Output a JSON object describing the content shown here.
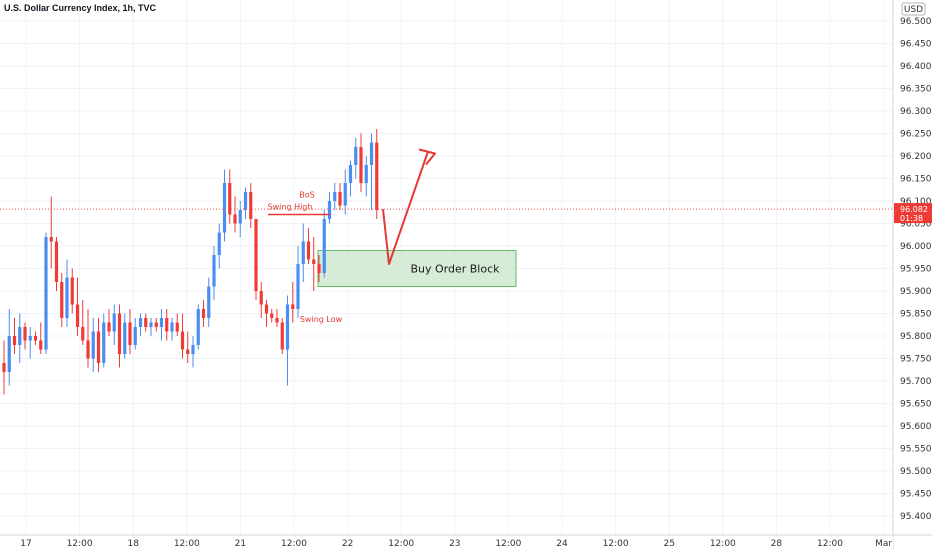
{
  "title": "U.S. Dollar Currency Index, 1h, TVC",
  "currency_badge": "USD",
  "chart_data": {
    "type": "candlestick",
    "instrument": "U.S. Dollar Currency Index",
    "interval": "1h",
    "source": "TVC",
    "ylim": [
      95.35,
      96.55
    ],
    "y_ticks": [
      "96.500",
      "96.450",
      "96.400",
      "96.350",
      "96.300",
      "96.250",
      "96.200",
      "96.150",
      "96.100",
      "96.050",
      "96.000",
      "95.950",
      "95.900",
      "95.850",
      "95.800",
      "95.750",
      "95.700",
      "95.650",
      "95.600",
      "95.550",
      "95.500",
      "95.450",
      "95.400"
    ],
    "x_ticks": [
      "17",
      "12:00",
      "18",
      "12:00",
      "21",
      "12:00",
      "22",
      "12:00",
      "23",
      "12:00",
      "24",
      "12:00",
      "25",
      "12:00",
      "28",
      "12:00",
      "Mar"
    ],
    "last_price": "96.082",
    "countdown": "01:38",
    "candles": [
      [
        95.74,
        95.79,
        95.67,
        95.72
      ],
      [
        95.72,
        95.86,
        95.69,
        95.8
      ],
      [
        95.8,
        95.84,
        95.76,
        95.78
      ],
      [
        95.78,
        95.85,
        95.74,
        95.82
      ],
      [
        95.82,
        95.83,
        95.77,
        95.79
      ],
      [
        95.79,
        95.82,
        95.75,
        95.8
      ],
      [
        95.8,
        95.81,
        95.78,
        95.79
      ],
      [
        95.79,
        95.83,
        95.76,
        95.77
      ],
      [
        95.77,
        96.03,
        95.76,
        96.02
      ],
      [
        96.02,
        96.11,
        95.95,
        96.01
      ],
      [
        96.01,
        96.02,
        95.9,
        95.92
      ],
      [
        95.92,
        95.94,
        95.82,
        95.84
      ],
      [
        95.84,
        95.97,
        95.82,
        95.93
      ],
      [
        95.93,
        95.95,
        95.85,
        95.87
      ],
      [
        95.87,
        95.93,
        95.8,
        95.82
      ],
      [
        95.82,
        95.88,
        95.78,
        95.79
      ],
      [
        95.79,
        95.86,
        95.73,
        95.75
      ],
      [
        95.75,
        95.84,
        95.72,
        95.81
      ],
      [
        95.81,
        95.84,
        95.72,
        95.74
      ],
      [
        95.74,
        95.85,
        95.73,
        95.83
      ],
      [
        95.83,
        95.86,
        95.8,
        95.81
      ],
      [
        95.81,
        95.87,
        95.78,
        95.85
      ],
      [
        95.85,
        95.87,
        95.73,
        95.76
      ],
      [
        95.76,
        95.85,
        95.75,
        95.83
      ],
      [
        95.83,
        95.86,
        95.76,
        95.78
      ],
      [
        95.78,
        95.84,
        95.77,
        95.82
      ],
      [
        95.82,
        95.85,
        95.8,
        95.84
      ],
      [
        95.84,
        95.85,
        95.81,
        95.82
      ],
      [
        95.82,
        95.84,
        95.8,
        95.83
      ],
      [
        95.83,
        95.84,
        95.81,
        95.82
      ],
      [
        95.82,
        95.86,
        95.79,
        95.84
      ],
      [
        95.84,
        95.86,
        95.79,
        95.81
      ],
      [
        95.81,
        95.84,
        95.79,
        95.83
      ],
      [
        95.83,
        95.85,
        95.8,
        95.81
      ],
      [
        95.81,
        95.85,
        95.75,
        95.77
      ],
      [
        95.77,
        95.81,
        95.74,
        95.76
      ],
      [
        95.76,
        95.8,
        95.73,
        95.78
      ],
      [
        95.78,
        95.87,
        95.77,
        95.86
      ],
      [
        95.86,
        95.88,
        95.82,
        95.84
      ],
      [
        95.84,
        95.93,
        95.82,
        95.91
      ],
      [
        95.91,
        96.0,
        95.88,
        95.98
      ],
      [
        95.98,
        96.05,
        95.95,
        96.03
      ],
      [
        96.03,
        96.17,
        96.01,
        96.14
      ],
      [
        96.14,
        96.17,
        96.05,
        96.07
      ],
      [
        96.07,
        96.11,
        96.03,
        96.05
      ],
      [
        96.05,
        96.1,
        96.02,
        96.08
      ],
      [
        96.08,
        96.13,
        96.06,
        96.12
      ],
      [
        96.12,
        96.14,
        96.04,
        96.06
      ],
      [
        96.06,
        96.06,
        95.88,
        95.9
      ],
      [
        95.9,
        95.92,
        95.84,
        95.87
      ],
      [
        95.87,
        95.88,
        95.82,
        95.85
      ],
      [
        95.85,
        95.86,
        95.83,
        95.84
      ],
      [
        95.84,
        95.86,
        95.82,
        95.83
      ],
      [
        95.83,
        95.84,
        95.76,
        95.77
      ],
      [
        95.77,
        95.89,
        95.69,
        95.87
      ],
      [
        95.87,
        95.92,
        95.83,
        95.86
      ],
      [
        95.86,
        96.0,
        95.84,
        95.96
      ],
      [
        95.96,
        96.05,
        95.92,
        96.01
      ],
      [
        96.01,
        96.04,
        95.96,
        95.97
      ],
      [
        95.97,
        96.02,
        95.9,
        95.96
      ],
      [
        95.96,
        95.98,
        95.92,
        95.94
      ],
      [
        95.94,
        96.08,
        95.93,
        96.06
      ],
      [
        96.06,
        96.12,
        96.05,
        96.1
      ],
      [
        96.1,
        96.14,
        96.08,
        96.12
      ],
      [
        96.12,
        96.14,
        96.08,
        96.09
      ],
      [
        96.09,
        96.17,
        96.07,
        96.14
      ],
      [
        96.14,
        96.19,
        96.11,
        96.18
      ],
      [
        96.18,
        96.24,
        96.15,
        96.22
      ],
      [
        96.22,
        96.25,
        96.12,
        96.14
      ],
      [
        96.14,
        96.2,
        96.11,
        96.18
      ],
      [
        96.18,
        96.25,
        96.08,
        96.23
      ],
      [
        96.23,
        96.26,
        96.06,
        96.08
      ]
    ],
    "annotations": {
      "bos_label": "BoS",
      "swing_high_label": "Swing High",
      "swing_low_label": "Swing Low",
      "order_block_label": "Buy Order Block",
      "order_block_range": [
        95.91,
        95.99
      ],
      "swing_high_price": 96.07,
      "swing_low_price": 95.92,
      "projection": [
        96.082,
        95.96,
        96.21
      ]
    },
    "colors": {
      "up": "#4b8ef1",
      "down": "#ef3b36",
      "annotation": "#e53935",
      "order_block_fill": "#c8e6c9",
      "order_block_border": "#66bb6a",
      "grid": "#f0f3fa",
      "price_line": "#ef5350"
    }
  }
}
